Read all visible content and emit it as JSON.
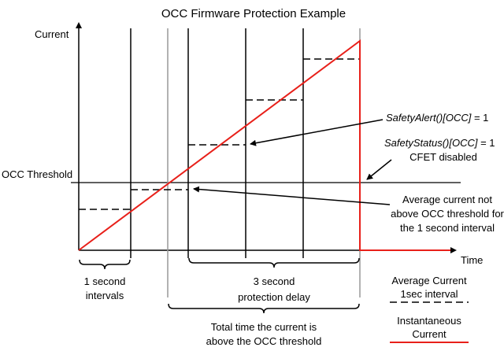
{
  "title": "OCC Firmware Protection Example",
  "axes": {
    "y_label": "Current",
    "x_label": "Time"
  },
  "threshold_label": "OCC Threshold",
  "annotations": {
    "safety_alert_italic": "SafetyAlert()[OCC]",
    "safety_alert_value": " = 1",
    "safety_status_italic": "SafetyStatus()[OCC]",
    "safety_status_value": " = 1",
    "cfet_disabled": "CFET disabled",
    "avg_note_line1": "Average current not",
    "avg_note_line2": "above OCC threshold for",
    "avg_note_line3": "the 1 second interval"
  },
  "braces": {
    "one_second_line1": "1 second",
    "one_second_line2": "intervals",
    "protection_line1": "3 second",
    "protection_line2": "protection delay",
    "total_line1": "Total time the current is",
    "total_line2": "above the OCC threshold"
  },
  "legend": {
    "average_line1": "Average Current",
    "average_line2": "1sec interval",
    "instant_line1": "Instantaneous",
    "instant_line2": "Current"
  },
  "colors": {
    "instantaneous": "#e8201a",
    "average": "#000000",
    "interval_marker": "#999999",
    "axis": "#000000"
  }
}
